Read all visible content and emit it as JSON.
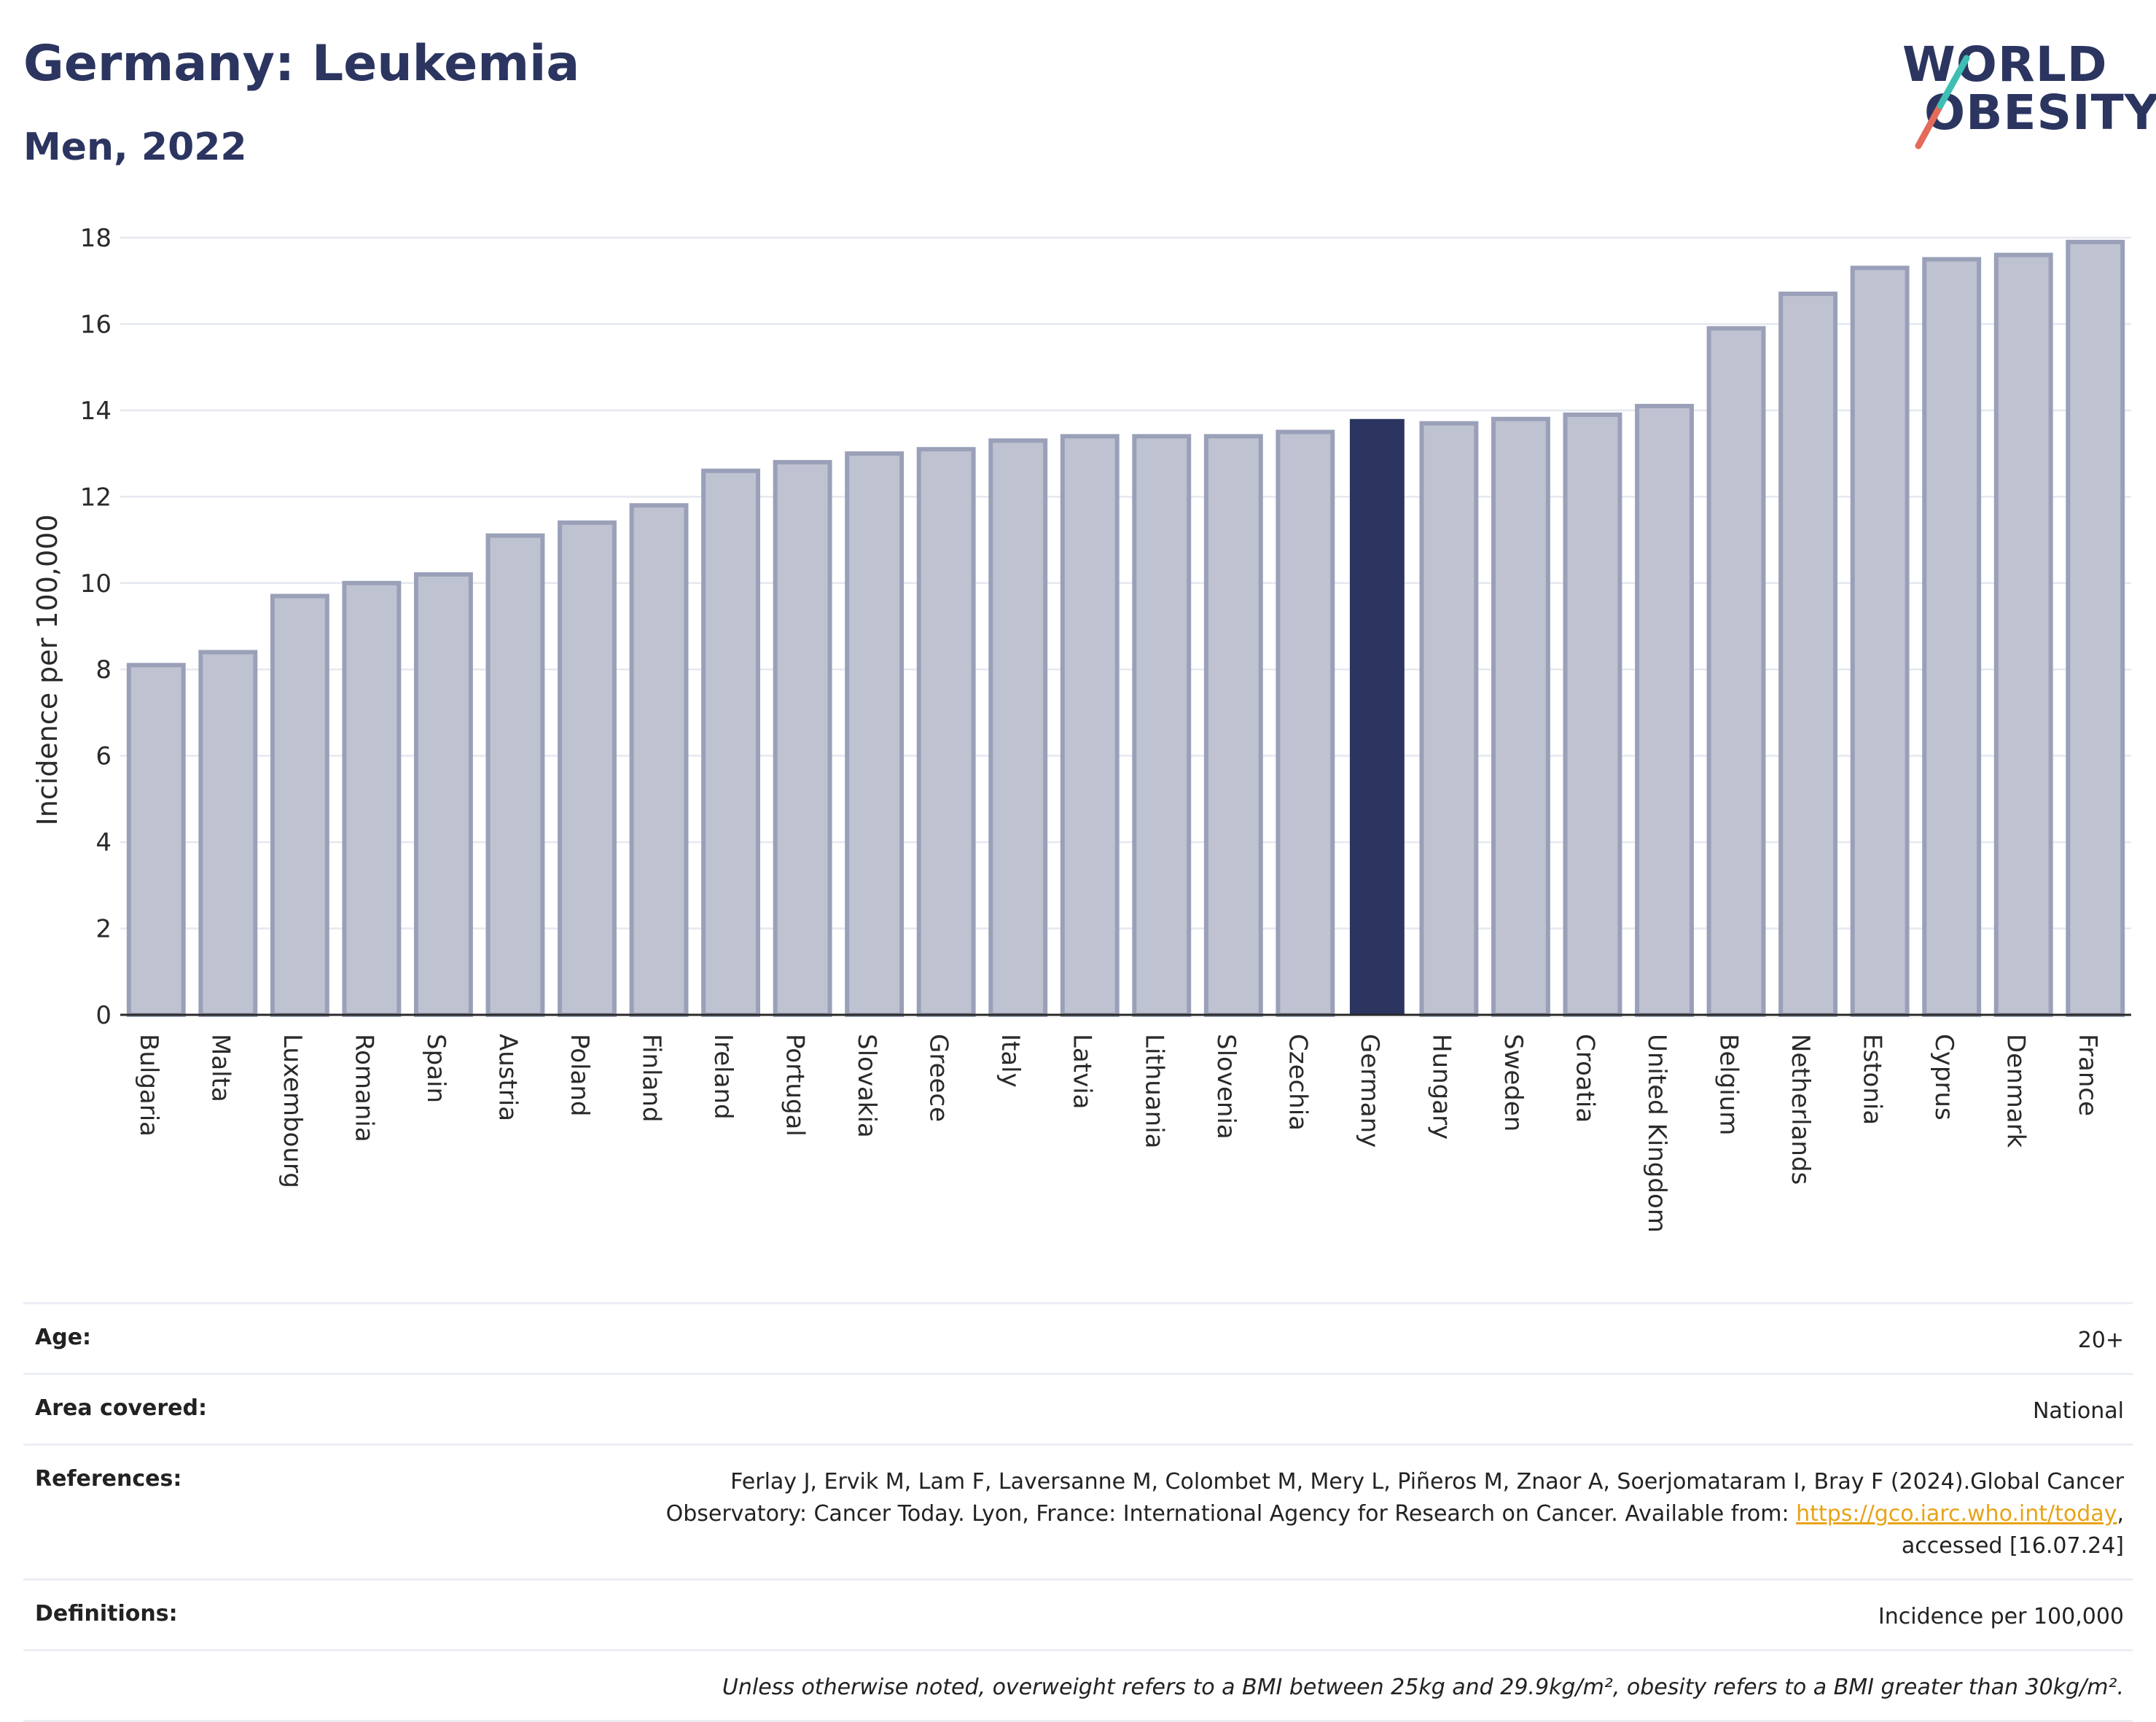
{
  "header": {
    "title": "Germany: Leukemia",
    "subtitle": "Men, 2022"
  },
  "logo": {
    "line1": "WORLD",
    "line2": "OBESITY"
  },
  "colors": {
    "bar": "#bfc2d0",
    "bar_border": "#9aa0b8",
    "highlight": "#2b3560",
    "grid": "#e6e8f0"
  },
  "chart_data": {
    "type": "bar",
    "ylabel": "Incidence per 100,000",
    "ylim": [
      0,
      18
    ],
    "yticks": [
      0,
      2,
      4,
      6,
      8,
      10,
      12,
      14,
      16,
      18
    ],
    "grid": true,
    "highlight": "Germany",
    "categories": [
      "Bulgaria",
      "Malta",
      "Luxembourg",
      "Romania",
      "Spain",
      "Austria",
      "Poland",
      "Finland",
      "Ireland",
      "Portugal",
      "Slovakia",
      "Greece",
      "Italy",
      "Latvia",
      "Lithuania",
      "Slovenia",
      "Czechia",
      "Germany",
      "Hungary",
      "Sweden",
      "Croatia",
      "United Kingdom",
      "Belgium",
      "Netherlands",
      "Estonia",
      "Cyprus",
      "Denmark",
      "France"
    ],
    "values": [
      8.1,
      8.4,
      9.7,
      10.0,
      10.2,
      11.1,
      11.4,
      11.8,
      12.6,
      12.8,
      13.0,
      13.1,
      13.3,
      13.4,
      13.4,
      13.4,
      13.5,
      13.8,
      13.7,
      13.8,
      13.9,
      14.1,
      15.9,
      16.7,
      17.3,
      17.5,
      17.6,
      17.9
    ]
  },
  "info": {
    "age_label": "Age:",
    "age_value": "20+",
    "area_label": "Area covered:",
    "area_value": "National",
    "references_label": "References:",
    "references_line1": "Ferlay J, Ervik M, Lam F, Laversanne M, Colombet M, Mery L, Piñeros M, Znaor A, Soerjomataram I, Bray F (2024).Global Cancer",
    "references_line2": "Observatory: Cancer Today. Lyon, France: International Agency for Research on Cancer. Available from: ",
    "references_link": "https://gco.iarc.who.int/today",
    "references_line3": "accessed [16.07.24]",
    "definitions_label": "Definitions:",
    "definitions_value": "Incidence per 100,000",
    "note": "Unless otherwise noted, overweight refers to a BMI between 25kg and 29.9kg/m², obesity refers to a BMI greater than 30kg/m²."
  }
}
